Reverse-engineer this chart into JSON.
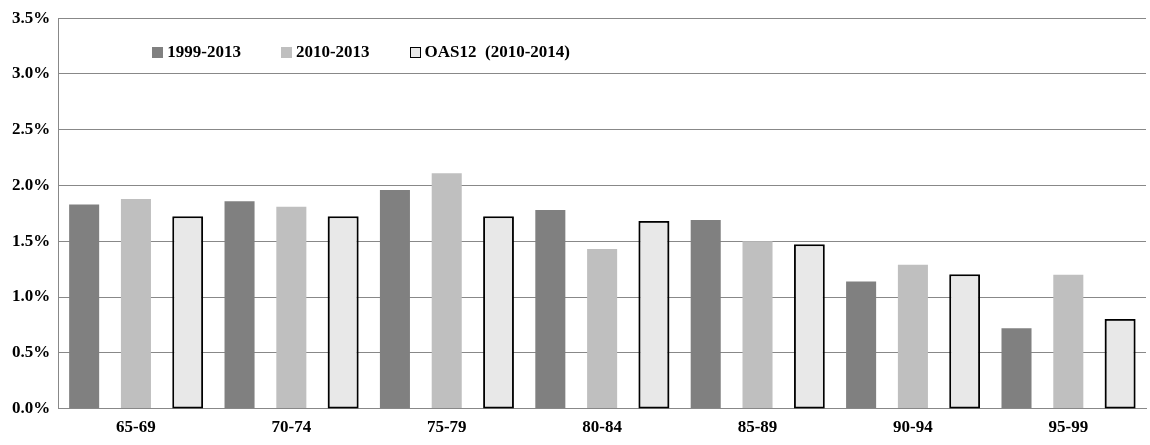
{
  "chart_data": {
    "type": "bar",
    "categories": [
      "65-69",
      "70-74",
      "75-79",
      "80-84",
      "85-89",
      "90-94",
      "95-99"
    ],
    "series": [
      {
        "name": "1999-2013",
        "color": "#808080",
        "values": [
          1.83,
          1.86,
          1.96,
          1.78,
          1.69,
          1.14,
          0.72
        ]
      },
      {
        "name": "2010-2013",
        "color": "#bfbfbf",
        "values": [
          1.88,
          1.81,
          2.11,
          1.43,
          1.5,
          1.29,
          1.2
        ]
      },
      {
        "name": "OAS12  (2010-2014)",
        "color": "#e8e8e8",
        "values": [
          1.72,
          1.72,
          1.72,
          1.68,
          1.47,
          1.2,
          0.8
        ]
      }
    ],
    "ylim": [
      0,
      3.5
    ],
    "yticks": [
      {
        "value": 0,
        "label": "0.0%"
      },
      {
        "value": 0.5,
        "label": "0.5%"
      },
      {
        "value": 1,
        "label": "1.0%"
      },
      {
        "value": 1.5,
        "label": "1.5%"
      },
      {
        "value": 2,
        "label": "2.0%"
      },
      {
        "value": 2.5,
        "label": "2.5%"
      },
      {
        "value": 3,
        "label": "3.0%"
      },
      {
        "value": 3.5,
        "label": "3.5%"
      }
    ],
    "grid": "y",
    "legend": "top left"
  }
}
